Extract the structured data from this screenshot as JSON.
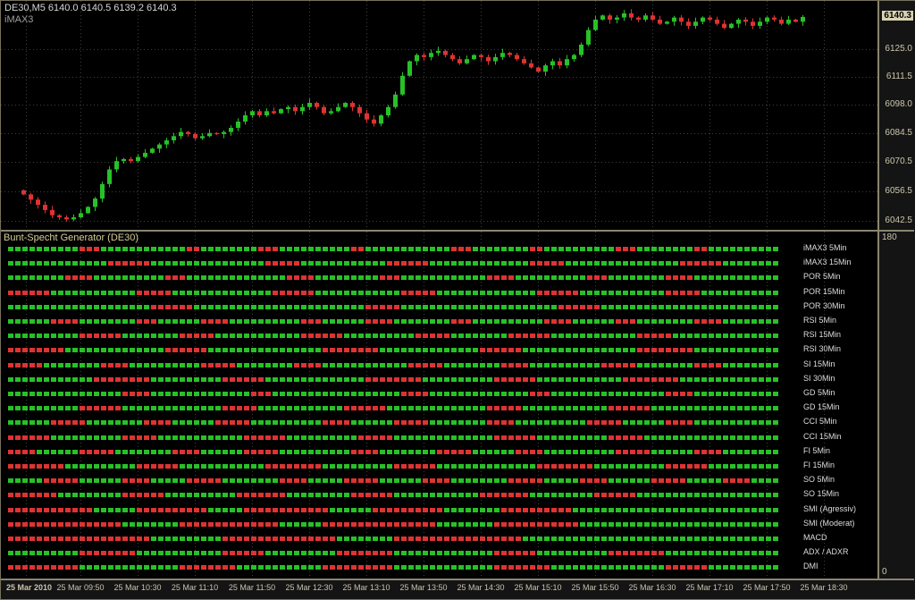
{
  "window": {
    "symbol_ohlc": "DE30,M5  6140.0 6140.5 6139.2 6140.3",
    "overlay_indicator": "iMAX3"
  },
  "colors": {
    "bull": "#27c127",
    "bear": "#dd3333",
    "grid": "#3f3f3f",
    "axis_text": "#cdc6ae",
    "panel_border": "#8a8570",
    "current_price_bg": "#d9d2b0"
  },
  "price_axis": {
    "current": "6140.3",
    "ticks": [
      "6125.0",
      "6111.5",
      "6098.0",
      "6084.5",
      "6070.5",
      "6056.5",
      "6042.5"
    ]
  },
  "indicator_axis": {
    "top": "180",
    "bottom": "0"
  },
  "time_axis": {
    "labels": [
      "25 Mar 2010",
      "25 Mar 09:50",
      "25 Mar 10:30",
      "25 Mar 11:10",
      "25 Mar 11:50",
      "25 Mar 12:30",
      "25 Mar 13:10",
      "25 Mar 13:50",
      "25 Mar 14:30",
      "25 Mar 15:10",
      "25 Mar 15:50",
      "25 Mar 16:30",
      "25 Mar 17:10",
      "25 Mar 17:50",
      "25 Mar 18:30"
    ]
  },
  "chart_data": [
    {
      "type": "candlestick",
      "title": "DE30,M5",
      "ohlc_last": [
        6140.0,
        6140.5,
        6139.2,
        6140.3
      ],
      "last_price": 6140.3,
      "ylim": [
        6038,
        6148
      ],
      "yticks": [
        6125.0,
        6111.5,
        6098.0,
        6084.5,
        6070.5,
        6056.5,
        6042.5
      ],
      "x_tick_labels": [
        "25 Mar 2010",
        "25 Mar 09:50",
        "25 Mar 10:30",
        "25 Mar 11:10",
        "25 Mar 11:50",
        "25 Mar 12:30",
        "25 Mar 13:10",
        "25 Mar 13:50",
        "25 Mar 14:30",
        "25 Mar 15:10",
        "25 Mar 15:50",
        "25 Mar 16:30",
        "25 Mar 17:10",
        "25 Mar 17:50",
        "25 Mar 18:30"
      ],
      "x_start": "09:10",
      "interval_min": 5,
      "closes": [
        6055,
        6052.5,
        6050,
        6047.5,
        6045,
        6044,
        6043,
        6044,
        6046,
        6049,
        6053,
        6060,
        6067,
        6071,
        6072,
        6071,
        6073,
        6075,
        6077,
        6079,
        6081,
        6083,
        6085,
        6084,
        6082,
        6083,
        6084.5,
        6084,
        6085,
        6087,
        6090,
        6093,
        6095,
        6093,
        6095,
        6094,
        6096,
        6097,
        6095,
        6097,
        6099,
        6097,
        6094,
        6095,
        6097,
        6099,
        6097,
        6094,
        6091,
        6089,
        6093,
        6097,
        6103,
        6112,
        6119,
        6122,
        6121,
        6123,
        6124,
        6122,
        6120,
        6118,
        6120,
        6122,
        6121,
        6119,
        6121,
        6123,
        6122,
        6120,
        6118,
        6116,
        6114,
        6117,
        6119,
        6117,
        6120,
        6122,
        6127,
        6134,
        6139,
        6141,
        6139,
        6140,
        6142,
        6140,
        6139,
        6141,
        6139,
        6137,
        6138,
        6140,
        6138,
        6136,
        6138,
        6140,
        6139,
        6137,
        6135,
        6137,
        6139,
        6138,
        6136,
        6138,
        6140,
        6139,
        6137,
        6139,
        6138,
        6140.3
      ]
    },
    {
      "type": "heatmap",
      "title": "Bunt-Specht Generator (DE30)",
      "y_range": [
        0,
        180
      ],
      "cell_colors": {
        "g": "#27c127",
        "r": "#dd3333"
      },
      "rows": [
        {
          "label": "iMAX3 5Min",
          "pattern": "g10 r3 g12 r2 g8 r3 g10 r2 g12 r3 g8 r2 g10 r3 g8 r2 g10"
        },
        {
          "label": "iMAX3 15Min",
          "pattern": "g14 r6 g16 r5 g12 r6 g14 r5 g16 r6 g8"
        },
        {
          "label": "POR 5Min",
          "pattern": "g8 r4 g10 r3 g14 r4 g9 r3 g12 r4 g10 r3 g8 r4 g12"
        },
        {
          "label": "POR 15Min",
          "pattern": "r6 g12 r5 g14 r6 g12 r5 g14 r6 g12 r5 g11"
        },
        {
          "label": "POR 30Min",
          "pattern": "g20 r6 g24 r5 g22 r6 g25"
        },
        {
          "label": "RSI 5Min",
          "pattern": "g6 r4 g8 r3 g6 r4 g10 r3 g6 r4 g8 r3 g10 r4 g6 r3 g8 r4 g8"
        },
        {
          "label": "RSI 15Min",
          "pattern": "g10 r6 g8 r5 g12 r6 g10 r5 g8 r6 g12 r5 g15"
        },
        {
          "label": "RSI 30Min",
          "pattern": "r8 g14 r6 g16 r8 g14 r6 g16 r8 g12"
        },
        {
          "label": "SI 15Min",
          "pattern": "r5 g8 r4 g10 r5 g8 r4 g12 r5 g8 r4 g10 r5 g8 r4 g8"
        },
        {
          "label": "SI 30Min",
          "pattern": "g12 r8 g10 r6 g14 r8 g10 r6 g12 r8 g14"
        },
        {
          "label": "GD 5Min",
          "pattern": "g16 r4 g14 r3 g18 r4 g14 r3 g16 r4 g12"
        },
        {
          "label": "GD 15Min",
          "pattern": "g10 r6 g14 r5 g12 r6 g14 r5 g12 r6 g18"
        },
        {
          "label": "CCI 5Min",
          "pattern": "g6 r5 g8 r4 g6 r5 g10 r4 g6 r5 g8 r4 g10 r5 g6 r4 g12"
        },
        {
          "label": "CCI 15Min",
          "pattern": "r6 g10 r5 g12 r6 g10 r5 g14 r6 g10 r5 g19"
        },
        {
          "label": "FI 5Min",
          "pattern": "r4 g6 r5 g8 r4 g6 r5 g10 r4 g8 r5 g6 r4 g10 r5 g6 r4 g8"
        },
        {
          "label": "FI 15Min",
          "pattern": "r8 g10 r6 g12 r8 g10 r6 g14 r8 g10 r6 g10"
        },
        {
          "label": "SO 5Min",
          "pattern": "g5 r5 g6 r4 g5 r5 g8 r4 g5 r5 g6 r4 g8 r5 g5 r4 g6 r5 g5 r4 g4"
        },
        {
          "label": "SO 15Min",
          "pattern": "r7 g9 r6 g10 r7 g9 r6 g12 r7 g9 r6 g20"
        },
        {
          "label": "SMI (Agressiv)",
          "pattern": "r12 g6 r10 g5 r12 g6 r10 g8 r10 g29"
        },
        {
          "label": "SMI (Moderat)",
          "pattern": "r16 g8 r14 g6 r16 g8 r12 g28"
        },
        {
          "label": "MACD",
          "pattern": "r20 g10 r16 g8 r18 g36"
        },
        {
          "label": "ADX / ADXR",
          "pattern": "g10 r8 g12 r6 g10 r8 g14 r6 g10 r8 g16"
        },
        {
          "label": "DMI",
          "pattern": "r10 g14 r8 g12 r10 g14 r8 g16 r6 g10"
        }
      ]
    }
  ]
}
